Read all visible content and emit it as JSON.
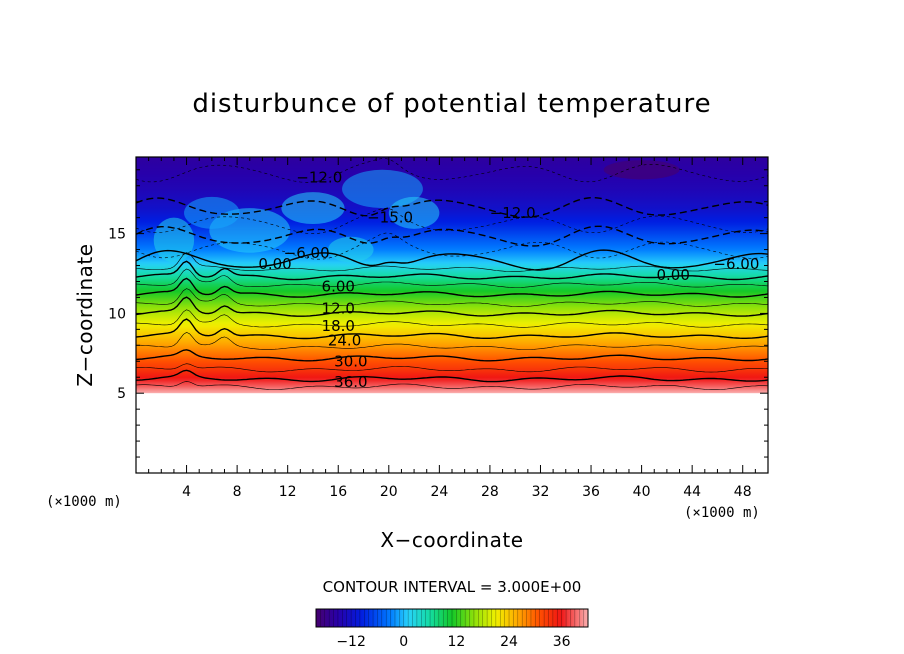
{
  "chart_data": {
    "type": "contour",
    "title": "disturbunce of potential temperature",
    "xlabel": "X−coordinate",
    "ylabel": "Z−coordinate",
    "x_unit_left": "(×1000 m)",
    "x_unit_right": "(×1000 m)",
    "xlim": [
      0,
      50
    ],
    "ylim": [
      0,
      19.8
    ],
    "x_ticks": [
      4,
      8,
      12,
      16,
      20,
      24,
      28,
      32,
      36,
      40,
      44,
      48
    ],
    "x_tick_labels": [
      "4",
      "8",
      "12",
      "16",
      "20",
      "24",
      "28",
      "32",
      "36",
      "40",
      "44",
      "48"
    ],
    "y_ticks": [
      5,
      10,
      15
    ],
    "y_tick_labels": [
      "5",
      "10",
      "15"
    ],
    "data_bottom_z": 5.0,
    "contour_interval_text": "CONTOUR INTERVAL = 3.000E+00",
    "contour_interval": 3.0,
    "colorbar": {
      "min": -20,
      "max": 42,
      "ticks": [
        -12,
        0,
        12,
        24,
        36
      ],
      "tick_labels": [
        "−12",
        "0",
        "12",
        "24",
        "36"
      ]
    },
    "profile": [
      {
        "z": 5.0,
        "value": 42
      },
      {
        "z": 5.4,
        "value": 39
      },
      {
        "z": 5.9,
        "value": 36
      },
      {
        "z": 6.5,
        "value": 33
      },
      {
        "z": 7.2,
        "value": 30
      },
      {
        "z": 7.9,
        "value": 27
      },
      {
        "z": 8.6,
        "value": 24
      },
      {
        "z": 9.3,
        "value": 21
      },
      {
        "z": 10.0,
        "value": 18
      },
      {
        "z": 10.6,
        "value": 15
      },
      {
        "z": 11.2,
        "value": 12
      },
      {
        "z": 11.8,
        "value": 9
      },
      {
        "z": 12.3,
        "value": 6
      },
      {
        "z": 12.8,
        "value": 3
      },
      {
        "z": 13.3,
        "value": 0
      },
      {
        "z": 14.0,
        "value": -3
      },
      {
        "z": 14.8,
        "value": -6
      },
      {
        "z": 15.6,
        "value": -9
      },
      {
        "z": 16.6,
        "value": -12
      },
      {
        "z": 17.8,
        "value": -14
      },
      {
        "z": 19.8,
        "value": -16
      }
    ],
    "contour_labels": [
      {
        "text": "−12.0",
        "x": 14.5,
        "z": 18.5
      },
      {
        "text": "−15.0",
        "x": 20.1,
        "z": 16.0
      },
      {
        "text": "−12.0",
        "x": 29.8,
        "z": 16.3
      },
      {
        "text": "−6.00",
        "x": 13.5,
        "z": 13.8
      },
      {
        "text": "0.00",
        "x": 11.0,
        "z": 13.1
      },
      {
        "text": "−6.00",
        "x": 47.5,
        "z": 13.1
      },
      {
        "text": "0.00",
        "x": 42.5,
        "z": 12.4
      },
      {
        "text": "6.00",
        "x": 16.0,
        "z": 11.7
      },
      {
        "text": "12.0",
        "x": 16.0,
        "z": 10.3
      },
      {
        "text": "18.0",
        "x": 16.0,
        "z": 9.2
      },
      {
        "text": "24.0",
        "x": 16.5,
        "z": 8.3
      },
      {
        "text": "30.0",
        "x": 17.0,
        "z": 7.0
      },
      {
        "text": "36.0",
        "x": 17.0,
        "z": 5.7
      }
    ]
  }
}
